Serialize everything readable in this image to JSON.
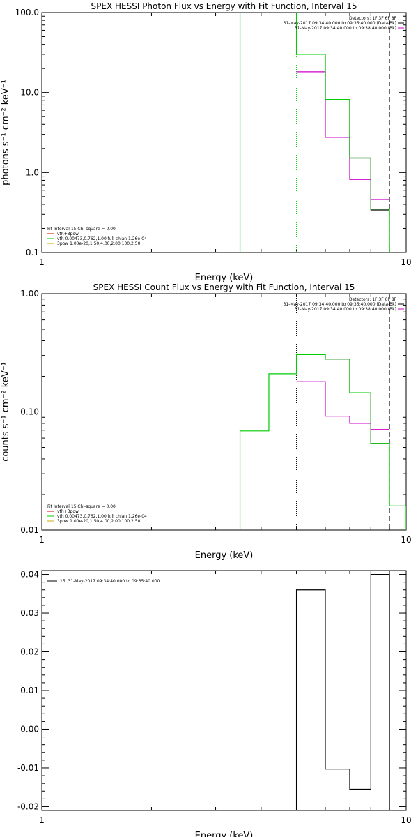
{
  "chart_data": [
    {
      "type": "line",
      "step": true,
      "title": "SPEX HESSI Photon Flux vs Energy with Fit Function, Interval 15",
      "xlabel": "Energy (keV)",
      "ylabel": "photons s⁻¹ cm⁻² keV⁻¹",
      "xscale": "log",
      "yscale": "log",
      "xlim": [
        1,
        10
      ],
      "ylim": [
        0.1,
        100
      ],
      "xticks": [
        {
          "v": 1,
          "label": "1"
        },
        {
          "v": 10,
          "label": "10"
        }
      ],
      "yticks": [
        {
          "v": 0.1,
          "label": "0.1"
        },
        {
          "v": 1,
          "label": "1.0"
        },
        {
          "v": 10,
          "label": "10.0"
        },
        {
          "v": 100,
          "label": "100.0"
        }
      ],
      "legend_right": [
        {
          "text": "Detectors: 1F 3F 6F 8F",
          "color": ""
        },
        {
          "text": "31-May-2017 09:34:40.000 to 09:35:40.000 (Data-Bk)",
          "color": "#000000"
        },
        {
          "text": "31-May-2017 09:34:40.000 to 09:38:40.000 (Bk)",
          "color": "#cc00cc"
        }
      ],
      "legend_left": [
        {
          "text": "Fit Interval 15   Chi-square = 0.00",
          "color": ""
        },
        {
          "text": "vth+3pow",
          "color": "#cc0000"
        },
        {
          "text": "vth 0.00473,0.762,1.00   full chian 1.26e-04",
          "color": "#00cc00"
        },
        {
          "text": "3pow 1.00e-20,1.50,4.00,2.00,100,2.50",
          "color": "#ccaa00"
        }
      ],
      "vlines": [
        {
          "x": 3.5,
          "style": "solid",
          "color": "#00cc00"
        },
        {
          "x": 5.0,
          "style": "dotted",
          "color": "#00cc00"
        },
        {
          "x": 9.0,
          "style": "dashed",
          "color": "#000000"
        }
      ],
      "series": [
        {
          "color": "#000000",
          "edges": [
            5.0,
            6.0,
            7.0,
            8.0,
            9.0
          ],
          "values": [
            30.0,
            8.2,
            1.52,
            0.34
          ]
        },
        {
          "color": "#cc00cc",
          "edges": [
            5.0,
            6.0,
            7.0,
            8.0,
            9.0
          ],
          "values": [
            18.2,
            2.75,
            0.82,
            0.46
          ]
        },
        {
          "color": "#00cc00",
          "edges": [
            3.5,
            5.0,
            6.0,
            7.0,
            8.0,
            9.0
          ],
          "values": [
            100,
            30.0,
            8.2,
            1.52,
            0.35
          ],
          "drop_to_floor": true
        }
      ]
    },
    {
      "type": "line",
      "step": true,
      "title": "SPEX HESSI Count Flux vs Energy with Fit Function, Interval 15",
      "xlabel": "Energy (keV)",
      "ylabel": "counts s⁻¹ cm⁻² keV⁻¹",
      "xscale": "log",
      "yscale": "log",
      "xlim": [
        1,
        10
      ],
      "ylim": [
        0.01,
        1
      ],
      "xticks": [
        {
          "v": 1,
          "label": "1"
        },
        {
          "v": 10,
          "label": "10"
        }
      ],
      "yticks": [
        {
          "v": 0.01,
          "label": "0.01"
        },
        {
          "v": 0.1,
          "label": "0.10"
        },
        {
          "v": 1,
          "label": "1.00"
        }
      ],
      "legend_right": [
        {
          "text": "Detectors: 1F 3F 6F 8F",
          "color": ""
        },
        {
          "text": "31-May-2017 09:34:40.000 to 09:35:40.000 (Data-Bk)",
          "color": "#000000"
        },
        {
          "text": "31-May-2017 09:34:40.000 to 09:38:40.000 (Bk)",
          "color": "#cc00cc"
        }
      ],
      "legend_left": [
        {
          "text": "Fit Interval 15   Chi-square = 0.00",
          "color": ""
        },
        {
          "text": "vth+3pow",
          "color": "#cc0000"
        },
        {
          "text": "vth 0.00473,0.762,1.00   full chian 1.26e-04",
          "color": "#00cc00"
        },
        {
          "text": "3pow 1.00e-20,1.50,4.00,2.00,100,2.50",
          "color": "#ccaa00"
        }
      ],
      "vlines": [
        {
          "x": 5.0,
          "style": "dotted",
          "color": "#000000"
        },
        {
          "x": 9.0,
          "style": "dashed",
          "color": "#000000"
        }
      ],
      "series": [
        {
          "color": "#000000",
          "edges": [
            5.0,
            6.0,
            7.0,
            8.0,
            9.0
          ],
          "values": [
            0.305,
            0.28,
            0.145,
            0.054
          ]
        },
        {
          "color": "#cc00cc",
          "edges": [
            5.0,
            6.0,
            7.0,
            8.0,
            9.0
          ],
          "values": [
            0.18,
            0.092,
            0.08,
            0.071
          ]
        },
        {
          "color": "#00cc00",
          "edges": [
            3.5,
            4.2,
            5.0,
            6.0,
            7.0,
            8.0,
            9.0,
            10.0
          ],
          "values": [
            0.069,
            0.21,
            0.305,
            0.28,
            0.145,
            0.054,
            0.016
          ],
          "drop_to_floor": true
        }
      ]
    },
    {
      "type": "line",
      "step": true,
      "title": "",
      "xlabel": "Energy (keV)",
      "ylabel": "",
      "xscale": "log",
      "yscale": "linear",
      "xlim": [
        1,
        10
      ],
      "ylim": [
        -0.021,
        0.041
      ],
      "xticks": [
        {
          "v": 1,
          "label": "1"
        },
        {
          "v": 10,
          "label": "10"
        }
      ],
      "yticks": [
        {
          "v": -0.02,
          "label": "-0.02"
        },
        {
          "v": -0.01,
          "label": "-0.01"
        },
        {
          "v": 0.0,
          "label": "0.00"
        },
        {
          "v": 0.01,
          "label": "0.01"
        },
        {
          "v": 0.02,
          "label": "0.02"
        },
        {
          "v": 0.03,
          "label": "0.03"
        },
        {
          "v": 0.04,
          "label": "0.04"
        }
      ],
      "legend_right": [],
      "legend_left_top": [
        {
          "text": "15. 31-May-2017 09:34:40.000 to 09:35:40.000",
          "color": "#000000"
        }
      ],
      "vlines": [],
      "series": [
        {
          "color": "#000000",
          "edges": [
            5.0,
            6.0,
            7.0,
            8.0,
            9.0
          ],
          "values": [
            0.036,
            -0.0103,
            -0.0155,
            0.04
          ],
          "drop_to_floor": true
        }
      ]
    }
  ]
}
